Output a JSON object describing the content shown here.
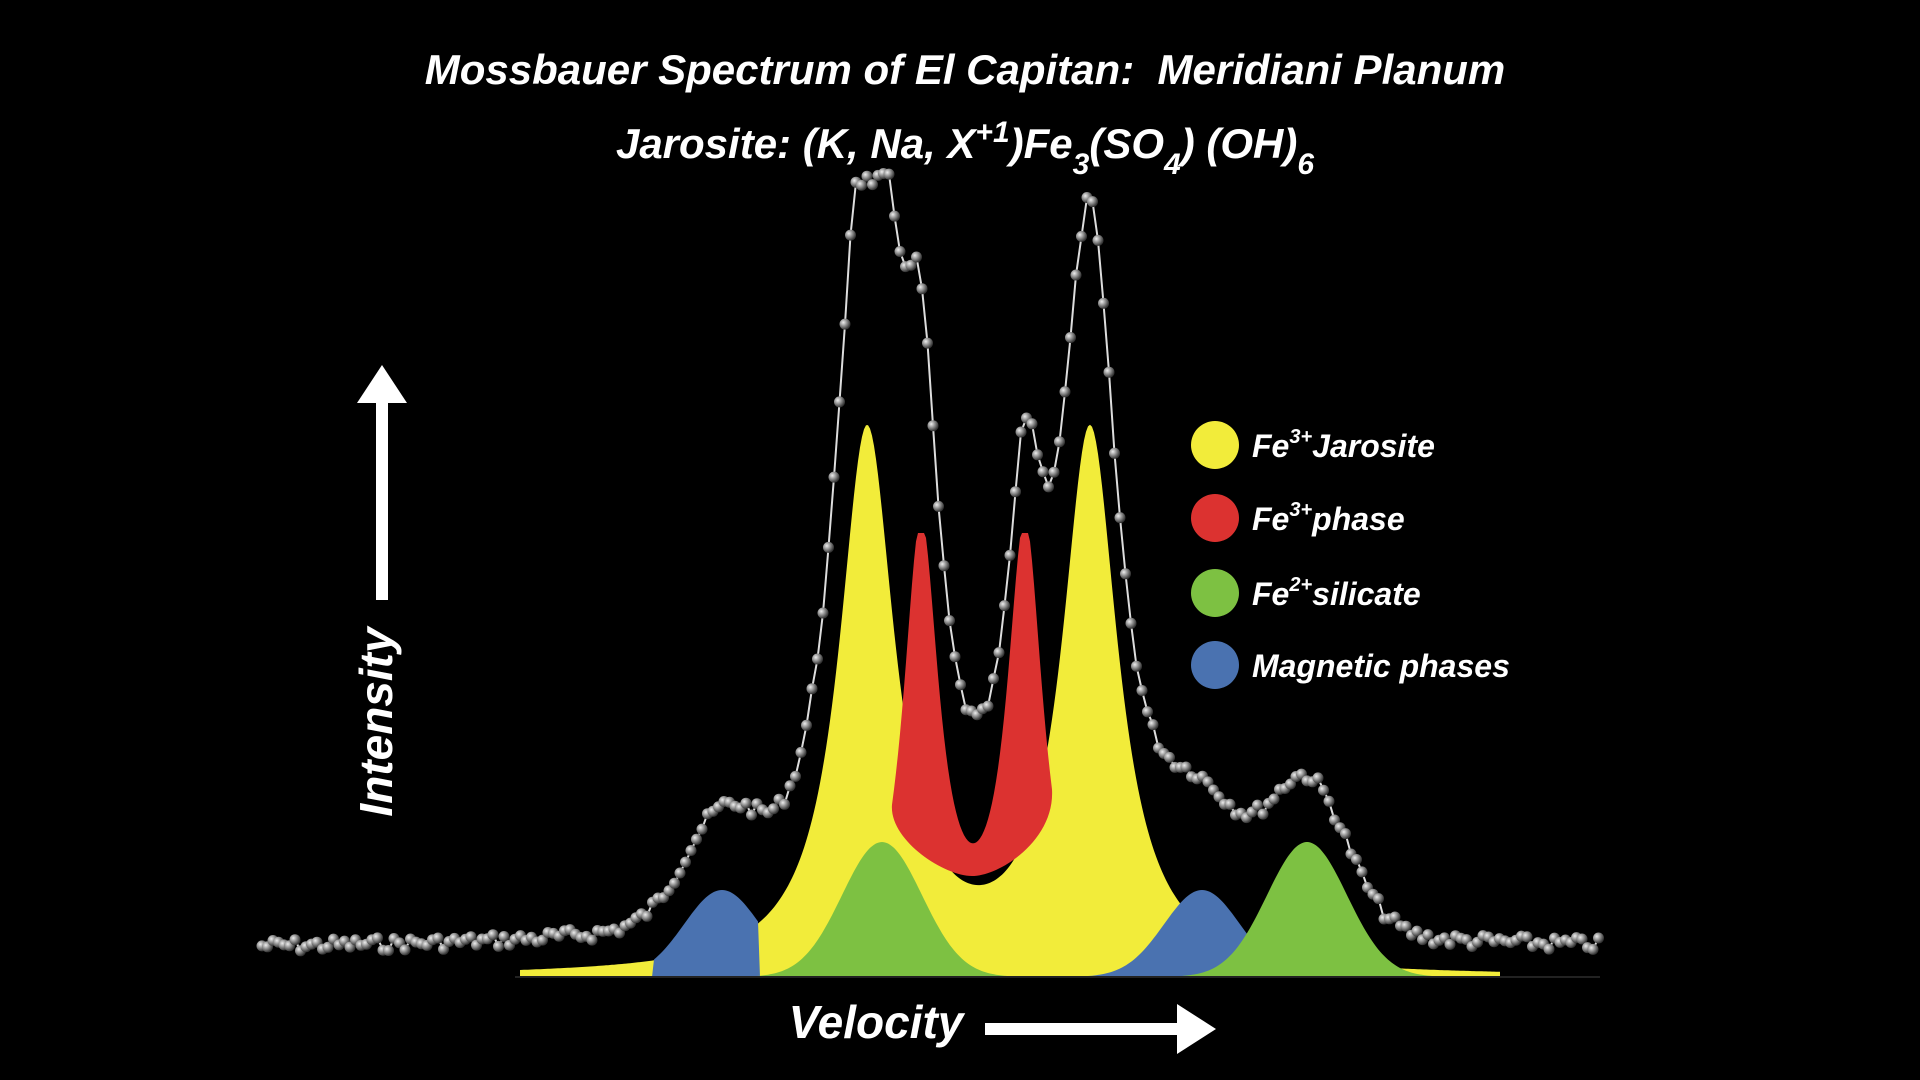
{
  "title": "Mossbauer Spectrum of El Capitan:  Meridiani Planum",
  "formula": [
    {
      "text": "Jarosite: (K, Na, X",
      "kind": "normal"
    },
    {
      "text": "+1",
      "kind": "sup"
    },
    {
      "text": ")Fe",
      "kind": "normal"
    },
    {
      "text": "3",
      "kind": "sub"
    },
    {
      "text": "(SO",
      "kind": "normal"
    },
    {
      "text": "4",
      "kind": "sub"
    },
    {
      "text": ") (OH)",
      "kind": "normal"
    },
    {
      "text": "6",
      "kind": "sub"
    }
  ],
  "y_label": "Intensity",
  "x_label": "Velocity",
  "legend": [
    {
      "base": "Fe",
      "sup": "3+",
      "text": "Jarosite",
      "color": "#f2ec3a"
    },
    {
      "base": "Fe",
      "sup": "3+",
      "text": "phase",
      "color": "#dc3230"
    },
    {
      "base": "Fe",
      "sup": "2+",
      "text": "silicate",
      "color": "#7dc142"
    },
    {
      "text": "Magnetic phases",
      "color": "#4a72b0"
    }
  ]
}
